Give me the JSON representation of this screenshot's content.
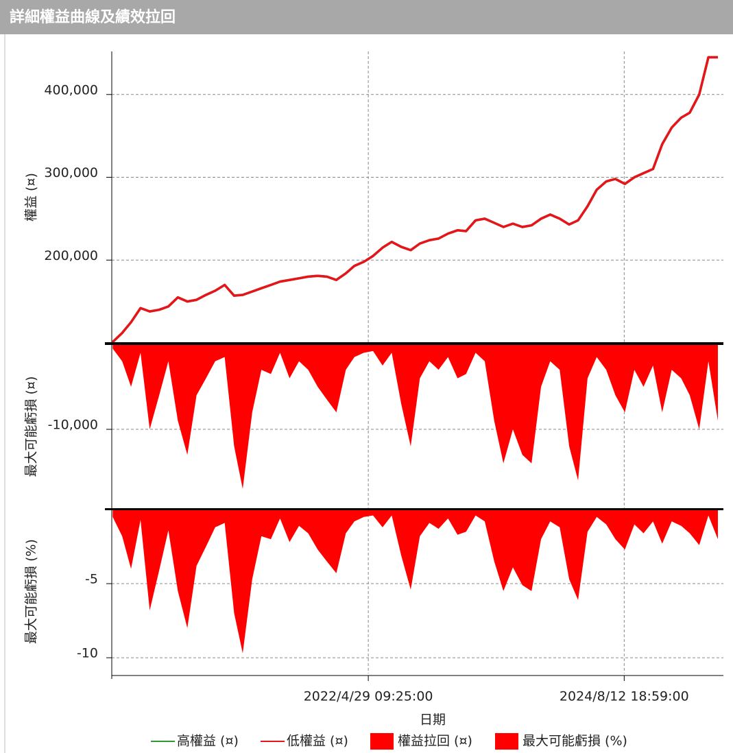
{
  "title": "詳細權益曲線及績效拉回",
  "chart_data": [
    {
      "type": "line",
      "ylabel": "權益 (¤)",
      "x": [
        "2020/1/15",
        "2020/2/15",
        "2020/3/15",
        "2020/4/15",
        "2020/5/15",
        "2020/6/15",
        "2020/7/15",
        "2020/8/15",
        "2020/9/15",
        "2020/10/15",
        "2020/11/15",
        "2020/12/15",
        "2021/1/15",
        "2021/2/15",
        "2021/3/15",
        "2021/4/15",
        "2021/5/15",
        "2021/6/15",
        "2021/7/15",
        "2021/8/15",
        "2021/9/15",
        "2021/10/15",
        "2021/11/15",
        "2021/12/15",
        "2022/1/15",
        "2022/2/15",
        "2022/3/15",
        "2022/4/15",
        "2022/5/15",
        "2022/6/15",
        "2022/7/15",
        "2022/8/15",
        "2022/9/15",
        "2022/10/15",
        "2022/11/15",
        "2022/12/15",
        "2023/1/15",
        "2023/2/15",
        "2023/3/15",
        "2023/4/15",
        "2023/5/15",
        "2023/6/15",
        "2023/7/15",
        "2023/8/15",
        "2023/9/15",
        "2023/10/15",
        "2023/11/15",
        "2023/12/15",
        "2024/1/15",
        "2024/2/15",
        "2024/3/15",
        "2024/4/15",
        "2024/5/15",
        "2024/6/15",
        "2024/7/15",
        "2024/8/15",
        "2024/9/15",
        "2024/10/15",
        "2024/11/15",
        "2024/12/15",
        "2025/1/15",
        "2025/2/15",
        "2025/3/15",
        "2025/4/15",
        "2025/5/15",
        "2025/6/15"
      ],
      "series": [
        {
          "name": "高權益 (¤)",
          "color": "#2e9a2e",
          "values": [
            101000,
            112000,
            125000,
            142000,
            138000,
            140000,
            144000,
            155000,
            150000,
            152000,
            158000,
            163000,
            170000,
            157000,
            158000,
            162000,
            166000,
            170000,
            174000,
            176000,
            178000,
            180000,
            181000,
            180000,
            176000,
            184000,
            193000,
            198000,
            205000,
            215000,
            222000,
            216000,
            212000,
            220000,
            224000,
            226000,
            232000,
            236000,
            235000,
            248000,
            250000,
            245000,
            240000,
            244000,
            240000,
            242000,
            250000,
            255000,
            250000,
            243000,
            248000,
            265000,
            285000,
            295000,
            298000,
            292000,
            300000,
            305000,
            310000,
            340000,
            360000,
            372000,
            378000,
            400000,
            445000,
            445000
          ]
        },
        {
          "name": "低權益 (¤)",
          "color": "#e8141c",
          "values": [
            101000,
            112000,
            125000,
            142000,
            138000,
            140000,
            144000,
            155000,
            150000,
            152000,
            158000,
            163000,
            170000,
            157000,
            158000,
            162000,
            166000,
            170000,
            174000,
            176000,
            178000,
            180000,
            181000,
            180000,
            176000,
            184000,
            193000,
            198000,
            205000,
            215000,
            222000,
            216000,
            212000,
            220000,
            224000,
            226000,
            232000,
            236000,
            235000,
            248000,
            250000,
            245000,
            240000,
            244000,
            240000,
            242000,
            250000,
            255000,
            250000,
            243000,
            248000,
            265000,
            285000,
            295000,
            298000,
            292000,
            300000,
            305000,
            310000,
            340000,
            360000,
            372000,
            378000,
            400000,
            445000,
            445000
          ]
        }
      ],
      "ylim": [
        100000,
        452000
      ],
      "yticks": [
        {
          "value": 200000,
          "label": "200,000"
        },
        {
          "value": 300000,
          "label": "300,000"
        },
        {
          "value": 400000,
          "label": "400,000"
        }
      ],
      "grid": true
    },
    {
      "type": "area",
      "ylabel": "最大可能虧損 (¤)",
      "x": [
        "2020/1/15",
        "2020/2/15",
        "2020/3/15",
        "2020/4/15",
        "2020/5/15",
        "2020/6/15",
        "2020/7/15",
        "2020/8/15",
        "2020/9/15",
        "2020/10/15",
        "2020/11/15",
        "2020/12/15",
        "2021/1/15",
        "2021/2/15",
        "2021/3/15",
        "2021/4/15",
        "2021/5/15",
        "2021/6/15",
        "2021/7/15",
        "2021/8/15",
        "2021/9/15",
        "2021/10/15",
        "2021/11/15",
        "2021/12/15",
        "2022/1/15",
        "2022/2/15",
        "2022/3/15",
        "2022/4/15",
        "2022/5/15",
        "2022/6/15",
        "2022/7/15",
        "2022/8/15",
        "2022/9/15",
        "2022/10/15",
        "2022/11/15",
        "2022/12/15",
        "2023/1/15",
        "2023/2/15",
        "2023/3/15",
        "2023/4/15",
        "2023/5/15",
        "2023/6/15",
        "2023/7/15",
        "2023/8/15",
        "2023/9/15",
        "2023/10/15",
        "2023/11/15",
        "2023/12/15",
        "2024/1/15",
        "2024/2/15",
        "2024/3/15",
        "2024/4/15",
        "2024/5/15",
        "2024/6/15",
        "2024/7/15",
        "2024/8/15",
        "2024/9/15",
        "2024/10/15",
        "2024/11/15",
        "2024/12/15",
        "2025/1/15",
        "2025/2/15",
        "2025/3/15",
        "2025/4/15",
        "2025/5/15",
        "2025/6/15"
      ],
      "series": [
        {
          "name": "權益拉回 (¤)",
          "color": "#ff0000",
          "values": [
            -500,
            -2000,
            -5000,
            -1000,
            -10000,
            -6000,
            -2000,
            -9000,
            -13000,
            -6000,
            -4000,
            -2000,
            -1500,
            -12000,
            -17000,
            -8000,
            -3000,
            -3500,
            -1000,
            -4000,
            -2000,
            -3000,
            -5000,
            -6500,
            -8000,
            -3000,
            -1500,
            -1000,
            -800,
            -2500,
            -1000,
            -7000,
            -12000,
            -4000,
            -2000,
            -3000,
            -1500,
            -4000,
            -3500,
            -1000,
            -2000,
            -9000,
            -14000,
            -10000,
            -13000,
            -14000,
            -5000,
            -2000,
            -3000,
            -12000,
            -16000,
            -4000,
            -1500,
            -3000,
            -6000,
            -8000,
            -3000,
            -5000,
            -2500,
            -8000,
            -3000,
            -4000,
            -6000,
            -10000,
            -2000,
            -9000
          ]
        }
      ],
      "ylim": [
        -19350,
        0
      ],
      "yticks": [
        {
          "value": -10000,
          "label": "-10,000"
        }
      ],
      "grid": true
    },
    {
      "type": "area",
      "ylabel": "最大可能虧損 (%)",
      "xlabel": "日期",
      "x": [
        "2020/1/15",
        "2020/2/15",
        "2020/3/15",
        "2020/4/15",
        "2020/5/15",
        "2020/6/15",
        "2020/7/15",
        "2020/8/15",
        "2020/9/15",
        "2020/10/15",
        "2020/11/15",
        "2020/12/15",
        "2021/1/15",
        "2021/2/15",
        "2021/3/15",
        "2021/4/15",
        "2021/5/15",
        "2021/6/15",
        "2021/7/15",
        "2021/8/15",
        "2021/9/15",
        "2021/10/15",
        "2021/11/15",
        "2021/12/15",
        "2022/1/15",
        "2022/2/15",
        "2022/3/15",
        "2022/4/15",
        "2022/5/15",
        "2022/6/15",
        "2022/7/15",
        "2022/8/15",
        "2022/9/15",
        "2022/10/15",
        "2022/11/15",
        "2022/12/15",
        "2023/1/15",
        "2023/2/15",
        "2023/3/15",
        "2023/4/15",
        "2023/5/15",
        "2023/6/15",
        "2023/7/15",
        "2023/8/15",
        "2023/9/15",
        "2023/10/15",
        "2023/11/15",
        "2023/12/15",
        "2024/1/15",
        "2024/2/15",
        "2024/3/15",
        "2024/4/15",
        "2024/5/15",
        "2024/6/15",
        "2024/7/15",
        "2024/8/15",
        "2024/9/15",
        "2024/10/15",
        "2024/11/15",
        "2024/12/15",
        "2025/1/15",
        "2025/2/15",
        "2025/3/15",
        "2025/4/15",
        "2025/5/15",
        "2025/6/15"
      ],
      "series": [
        {
          "name": "最大可能虧損 (%)",
          "color": "#ff0000",
          "values": [
            -0.5,
            -1.8,
            -4,
            -0.7,
            -6.8,
            -4.1,
            -1.4,
            -5.5,
            -8,
            -3.8,
            -2.5,
            -1.2,
            -0.9,
            -7,
            -9.7,
            -4.7,
            -1.8,
            -2,
            -0.6,
            -2.2,
            -1.1,
            -1.6,
            -2.7,
            -3.5,
            -4.3,
            -1.6,
            -0.8,
            -0.5,
            -0.4,
            -1.2,
            -0.4,
            -3.1,
            -5.4,
            -1.8,
            -0.9,
            -1.3,
            -0.6,
            -1.7,
            -1.5,
            -0.4,
            -0.8,
            -3.5,
            -5.5,
            -3.9,
            -5.1,
            -5.5,
            -2,
            -0.8,
            -1.2,
            -4.7,
            -6.1,
            -1.5,
            -0.5,
            -1,
            -2,
            -2.7,
            -1,
            -1.6,
            -0.8,
            -2.3,
            -0.8,
            -1.1,
            -1.6,
            -2.4,
            -0.4,
            -2
          ]
        }
      ],
      "ylim": [
        -11.06,
        0
      ],
      "yticks": [
        -5,
        -10
      ],
      "xlim": [
        "2020/1/12",
        "2025/7/3"
      ],
      "xticks": [
        "2022/4/29 09:25:00",
        "2024/8/12 18:59:00"
      ],
      "grid": true
    }
  ]
}
